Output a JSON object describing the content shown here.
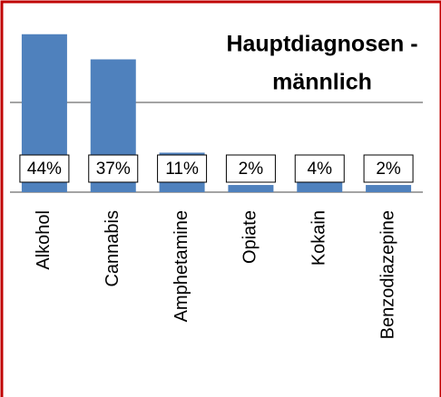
{
  "chart_data": {
    "type": "bar",
    "title": [
      "Hauptdiagnosen -",
      "männlich"
    ],
    "categories": [
      "Alkohol",
      "Cannabis",
      "Amphetamine",
      "Opiate",
      "Kokain",
      "Benzodiazepine"
    ],
    "values": [
      44,
      37,
      11,
      2,
      4,
      2
    ],
    "value_labels": [
      "44%",
      "37%",
      "11%",
      "2%",
      "4%",
      "2%"
    ],
    "color": "#4f81bd",
    "ylim": [
      0,
      50
    ],
    "yticks": [
      0,
      25,
      50
    ],
    "grid": true
  }
}
